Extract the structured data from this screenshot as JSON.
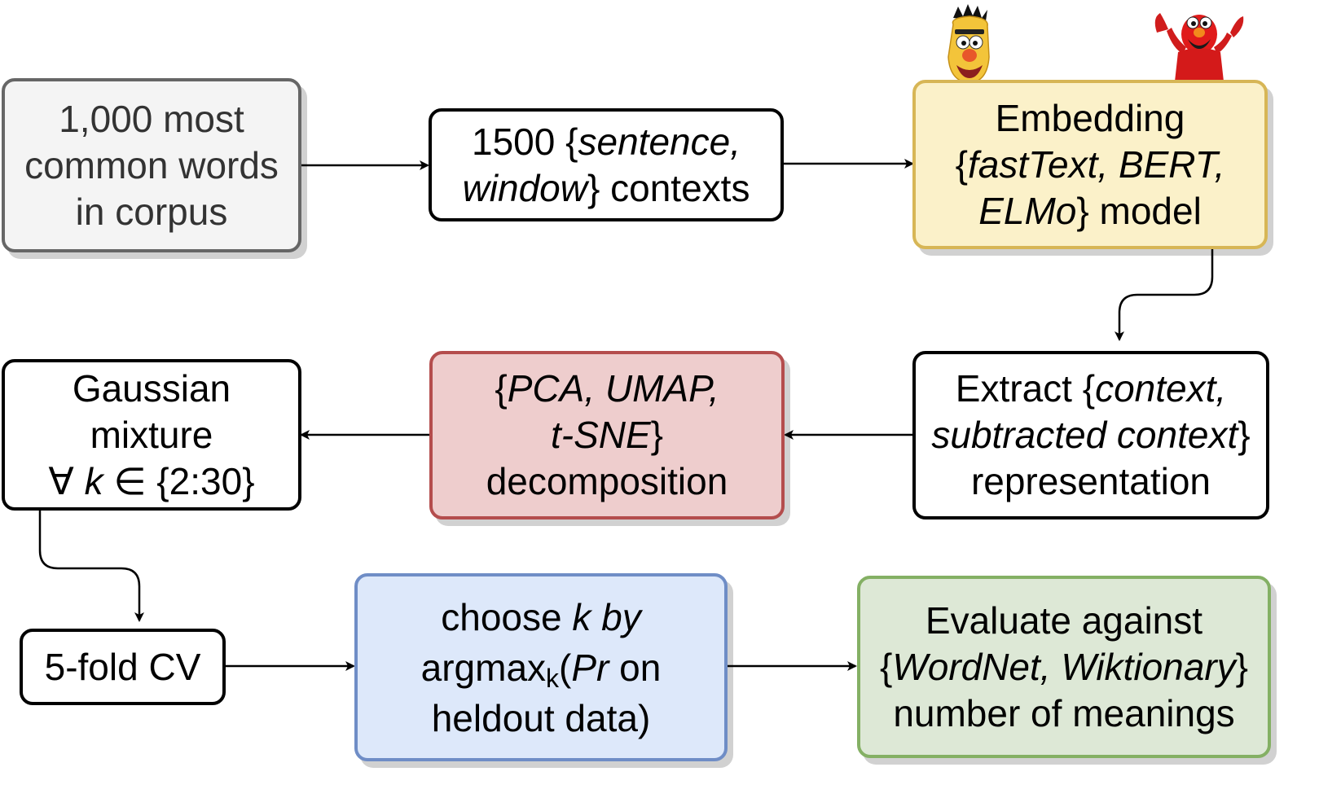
{
  "nodes": {
    "words": {
      "l1": "1,000 most",
      "l2": "common words",
      "l3": "in corpus"
    },
    "contexts": {
      "a": "1500 {",
      "b": "sentence,",
      "c": "window",
      "d": "} contexts"
    },
    "embedding": {
      "a": "Embedding",
      "b": "{",
      "c": "fastText, BERT,",
      "d": "ELMo",
      "e": "} model"
    },
    "extract": {
      "a": "Extract {",
      "b": "context,",
      "c": "subtracted context",
      "d": "}",
      "e": "representation"
    },
    "decomposition": {
      "a": "{",
      "b": "PCA, UMAP,",
      "c": "t-SNE",
      "d": "}",
      "e": "decomposition"
    },
    "gaussian": {
      "a": "Gaussian",
      "b": "mixture",
      "c": "∀ ",
      "d": "k",
      "e": " ∈ {2:30}"
    },
    "cv": {
      "a": "5-fold CV"
    },
    "choose": {
      "a": "choose ",
      "b": "k by",
      "c": "argmax",
      "d": "k",
      "e": "(",
      "f": "Pr",
      "g": " on",
      "h": "heldout data)"
    },
    "evaluate": {
      "a": "Evaluate against",
      "b": "{",
      "c": "WordNet, Wiktionary",
      "d": "}",
      "e": "number of meanings"
    }
  },
  "colors": {
    "gray_fill": "#f4f4f4",
    "yellow_fill": "#fbf1c9",
    "red_fill": "#eecdcd",
    "blue_fill": "#dde8fa",
    "green_fill": "#dde8d6"
  },
  "icons": [
    "bert-muppet-icon",
    "elmo-muppet-icon"
  ]
}
